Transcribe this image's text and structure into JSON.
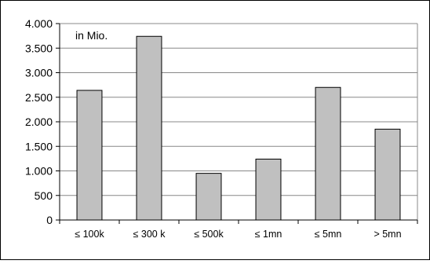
{
  "chart_data": {
    "type": "bar",
    "categories": [
      "≤ 100k",
      "≤ 300 k",
      "≤ 500k",
      "≤ 1mn",
      "≤  5mn",
      "> 5mn"
    ],
    "values": [
      2640,
      3740,
      950,
      1240,
      2700,
      1850
    ],
    "title": "",
    "xlabel": "",
    "ylabel": "",
    "unit_note": "in Mio.",
    "ylim": [
      0,
      4000
    ],
    "yticks": [
      0,
      500,
      1000,
      1500,
      2000,
      2500,
      3000,
      3500,
      4000
    ],
    "ytick_labels": [
      "0",
      "500",
      "1.000",
      "1.500",
      "2.000",
      "2.500",
      "3.000",
      "3.500",
      "4.000"
    ],
    "grid": true,
    "legend": "none",
    "colors": {
      "bar_fill": "#c0c0c0",
      "bar_stroke": "#000000",
      "grid": "#888888",
      "frame": "#000000"
    }
  }
}
